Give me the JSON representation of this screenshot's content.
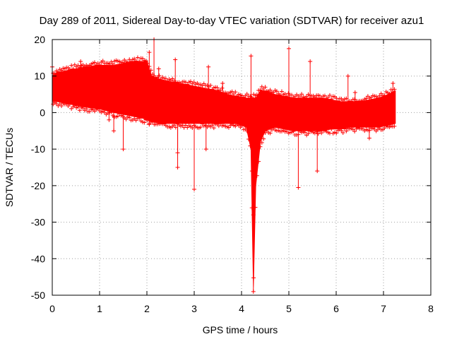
{
  "chart_data": {
    "type": "scatter",
    "title": "Day 289 of 2011, Sidereal Day-to-day VTEC variation (SDTVAR) for receiver azu1",
    "xlabel": "GPS time / hours",
    "ylabel": "SDTVAR / TECUs",
    "xlim": [
      0,
      8
    ],
    "ylim": [
      -50,
      20
    ],
    "xticks": [
      0,
      1,
      2,
      3,
      4,
      5,
      6,
      7,
      8
    ],
    "yticks": [
      -50,
      -40,
      -30,
      -20,
      -10,
      0,
      10,
      20
    ],
    "grid": true,
    "marker": "+",
    "series_color": "#ff0000",
    "envelope": {
      "x": [
        0.0,
        0.1,
        0.3,
        0.5,
        0.7,
        1.0,
        1.3,
        1.5,
        1.7,
        1.9,
        2.0,
        2.1,
        2.3,
        2.5,
        2.7,
        2.9,
        3.1,
        3.3,
        3.5,
        3.7,
        3.9,
        4.1,
        4.2,
        4.25,
        4.3,
        4.4,
        4.5,
        4.7,
        4.9,
        5.1,
        5.3,
        5.5,
        5.7,
        5.9,
        6.1,
        6.3,
        6.5,
        6.7,
        6.9,
        7.1,
        7.25
      ],
      "upper": [
        10,
        11,
        11.5,
        12,
        12.5,
        13,
        13,
        13.5,
        14,
        14,
        14,
        10,
        9,
        8.5,
        8,
        7.5,
        7,
        6.5,
        6,
        5,
        4.5,
        4,
        4,
        4,
        4,
        6,
        6,
        5,
        4.5,
        4,
        4,
        4,
        4,
        3.5,
        3,
        3,
        3,
        3.5,
        4,
        5,
        6
      ],
      "lower": [
        3,
        3,
        2.5,
        2,
        1.5,
        1,
        0,
        -0.5,
        -1,
        -1.5,
        -2,
        -2.5,
        -3,
        -3,
        -3,
        -3,
        -3,
        -3,
        -3,
        -3,
        -3,
        -4,
        -10,
        -48,
        -20,
        -8,
        -5,
        -4,
        -4.5,
        -5,
        -5,
        -5,
        -5,
        -4.5,
        -4.5,
        -4,
        -4,
        -4,
        -4,
        -3.5,
        -3
      ]
    },
    "outliers": [
      {
        "x": 0.0,
        "y": 12.5
      },
      {
        "x": 0.6,
        "y": 14
      },
      {
        "x": 0.55,
        "y": 2
      },
      {
        "x": 1.2,
        "y": -2
      },
      {
        "x": 1.3,
        "y": -5
      },
      {
        "x": 1.5,
        "y": -10
      },
      {
        "x": 2.05,
        "y": 16.5
      },
      {
        "x": 2.15,
        "y": 20
      },
      {
        "x": 2.05,
        "y": -3
      },
      {
        "x": 2.25,
        "y": 12
      },
      {
        "x": 2.6,
        "y": 14.5
      },
      {
        "x": 2.65,
        "y": -11
      },
      {
        "x": 2.65,
        "y": -15
      },
      {
        "x": 3.0,
        "y": -21
      },
      {
        "x": 3.3,
        "y": 12.5
      },
      {
        "x": 3.25,
        "y": -10
      },
      {
        "x": 3.6,
        "y": 8
      },
      {
        "x": 4.2,
        "y": 15.5
      },
      {
        "x": 4.25,
        "y": -49
      },
      {
        "x": 4.25,
        "y": -28
      },
      {
        "x": 4.22,
        "y": -16
      },
      {
        "x": 4.35,
        "y": -10
      },
      {
        "x": 5.0,
        "y": 17.5
      },
      {
        "x": 5.2,
        "y": -20.5
      },
      {
        "x": 5.45,
        "y": 14
      },
      {
        "x": 5.6,
        "y": -16
      },
      {
        "x": 6.25,
        "y": 10
      },
      {
        "x": 6.4,
        "y": 5.5
      },
      {
        "x": 6.7,
        "y": -7
      },
      {
        "x": 7.2,
        "y": 8
      }
    ]
  }
}
